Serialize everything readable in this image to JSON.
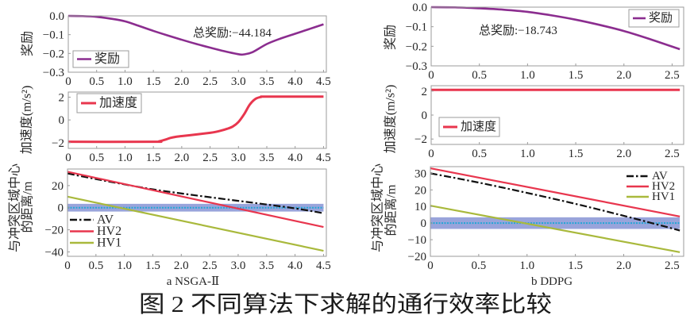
{
  "figure": {
    "caption": "图 2 不同算法下求解的通行效率比较",
    "subfigure_labels": [
      "a NSGA-Ⅱ",
      "b DDPG"
    ]
  },
  "colors": {
    "reward": "#8B2D8F",
    "acceleration": "#E8364E",
    "av": "#111111",
    "hv2": "#E8364E",
    "hv1": "#A9B93C",
    "conflict_band": "#8E9AD7",
    "conflict_center": "#22A7D6",
    "frame": "#9B9B9B"
  },
  "chart_data": [
    {
      "type": "line",
      "ylabel": [
        "奖励"
      ],
      "xlim": [
        0,
        4.55
      ],
      "ylim": [
        -0.3,
        0
      ],
      "xticks": [
        0,
        0.5,
        1,
        1.5,
        2,
        2.5,
        3,
        3.5,
        4,
        4.5
      ],
      "xtick_labels": [
        "0",
        "0.5",
        "1.0",
        "1.5",
        "2.0",
        "2.5",
        "3.0",
        "3.5",
        "4.0",
        "4.5"
      ],
      "yticks": [
        0,
        -0.1,
        -0.2,
        -0.3
      ],
      "ytick_labels": [
        "0.0",
        "−0.1",
        "−0.2",
        "−0.3"
      ],
      "grid": false,
      "legend": {
        "position": "lower-left",
        "framed": true
      },
      "annotation": "总奖励:−44.184",
      "series": [
        {
          "name": "奖励",
          "color": "#8B2D8F",
          "style": "solid",
          "x": [
            0,
            0.25,
            0.5,
            0.75,
            1.0,
            1.25,
            1.5,
            1.75,
            2.0,
            2.25,
            2.5,
            2.75,
            3.0,
            3.1,
            3.25,
            3.5,
            3.75,
            4.0,
            4.25,
            4.5
          ],
          "y": [
            0,
            -0.001,
            -0.005,
            -0.015,
            -0.029,
            -0.054,
            -0.08,
            -0.104,
            -0.127,
            -0.149,
            -0.169,
            -0.188,
            -0.204,
            -0.205,
            -0.193,
            -0.15,
            -0.12,
            -0.095,
            -0.07,
            -0.045
          ]
        }
      ]
    },
    {
      "type": "line",
      "ylabel": [
        "加速度(m/s²)"
      ],
      "xlim": [
        0,
        4.55
      ],
      "ylim": [
        -2.5,
        2.45
      ],
      "xticks": [
        0,
        0.5,
        1,
        1.5,
        2,
        2.5,
        3,
        3.5,
        4,
        4.5
      ],
      "xtick_labels": [
        "0",
        "0.5",
        "1.0",
        "1.5",
        "2.0",
        "2.5",
        "3.0",
        "3.5",
        "4.0",
        "4.5"
      ],
      "yticks": [
        2,
        0,
        -2
      ],
      "ytick_labels": [
        "2",
        "0",
        "−2"
      ],
      "grid": false,
      "legend": {
        "position": "upper-left",
        "framed": true
      },
      "series": [
        {
          "name": "加速度",
          "color": "#E8364E",
          "style": "solid",
          "x": [
            0,
            1.5,
            1.6,
            1.7,
            1.8,
            1.9,
            2.0,
            2.25,
            2.5,
            2.6,
            2.7,
            2.8,
            2.9,
            3.0,
            3.1,
            3.2,
            3.3,
            3.4,
            3.5,
            4.5
          ],
          "y": [
            -1.92,
            -1.92,
            -1.88,
            -1.75,
            -1.58,
            -1.48,
            -1.42,
            -1.28,
            -1.13,
            -1.05,
            -0.93,
            -0.78,
            -0.58,
            -0.18,
            0.5,
            1.35,
            1.85,
            2.02,
            2.05,
            2.05
          ]
        }
      ]
    },
    {
      "type": "line",
      "ylabel": [
        "与冲突区域中心",
        "的距离/m"
      ],
      "xlim": [
        0,
        4.55
      ],
      "ylim": [
        -44,
        35
      ],
      "xticks": [
        0,
        0.5,
        1,
        1.5,
        2,
        2.5,
        3,
        3.5,
        4,
        4.5
      ],
      "xtick_labels": [
        "0",
        "0.5",
        "1.0",
        "1.5",
        "2.0",
        "2.5",
        "3.0",
        "3.5",
        "4.0",
        "4.5"
      ],
      "yticks": [
        20,
        0,
        -20,
        -40
      ],
      "ytick_labels": [
        "20",
        "0",
        "−20",
        "−40"
      ],
      "grid": false,
      "legend": {
        "position": "lower-left",
        "framed": false
      },
      "bands": [
        {
          "x_range": [
            0,
            4.5
          ],
          "y_range": [
            -3.5,
            3.5
          ],
          "center": 0,
          "color": "#8E9AD7",
          "center_color": "#22A7D6"
        }
      ],
      "series": [
        {
          "name": "AV",
          "color": "#111111",
          "style": "dashdot",
          "x": [
            0,
            0.5,
            1.0,
            1.5,
            2.0,
            2.5,
            3.0,
            3.5,
            4.0,
            4.5
          ],
          "y": [
            31,
            25.9,
            21.1,
            16.6,
            12.9,
            9.5,
            6.2,
            2.9,
            -0.6,
            -5
          ]
        },
        {
          "name": "HV2",
          "color": "#E8364E",
          "style": "solid",
          "x": [
            0,
            4.5
          ],
          "y": [
            32.5,
            -17.5
          ]
        },
        {
          "name": "HV1",
          "color": "#A9B93C",
          "style": "solid",
          "x": [
            0,
            4.5
          ],
          "y": [
            10,
            -39
          ]
        }
      ]
    },
    {
      "type": "line",
      "ylabel": [
        "奖励"
      ],
      "xlim": [
        0,
        2.62
      ],
      "ylim": [
        -0.3,
        0
      ],
      "xticks": [
        0,
        0.5,
        1,
        1.5,
        2,
        2.5
      ],
      "xtick_labels": [
        "0",
        "0.5",
        "1.0",
        "1.5",
        "2.0",
        "2.5"
      ],
      "yticks": [
        0,
        -0.1,
        -0.2,
        -0.3
      ],
      "ytick_labels": [
        "0.0",
        "−0.1",
        "−0.2",
        "−0.3"
      ],
      "grid": false,
      "legend": {
        "position": "upper-right",
        "framed": true
      },
      "annotation": "总奖励:−18.743",
      "series": [
        {
          "name": "奖励",
          "color": "#8B2D8F",
          "style": "solid",
          "x": [
            0,
            0.25,
            0.5,
            0.75,
            1.0,
            1.25,
            1.5,
            1.75,
            2.0,
            2.25,
            2.58
          ],
          "y": [
            0,
            -0.001,
            -0.006,
            -0.013,
            -0.024,
            -0.042,
            -0.064,
            -0.091,
            -0.122,
            -0.16,
            -0.215
          ]
        }
      ]
    },
    {
      "type": "line",
      "ylabel": [
        "加速度(m/s²)"
      ],
      "xlim": [
        0,
        2.62
      ],
      "ylim": [
        -2.45,
        2.45
      ],
      "xticks": [
        0,
        0.5,
        1,
        1.5,
        2,
        2.5
      ],
      "xtick_labels": [
        "0",
        "0.5",
        "1.0",
        "1.5",
        "2.0",
        "2.5"
      ],
      "yticks": [
        2,
        0,
        -2
      ],
      "ytick_labels": [
        "2",
        "0",
        "−2"
      ],
      "grid": false,
      "legend": {
        "position": "lower-left",
        "framed": true
      },
      "series": [
        {
          "name": "加速度",
          "color": "#E8364E",
          "style": "solid",
          "x": [
            0,
            2.58
          ],
          "y": [
            2.1,
            2.1
          ]
        }
      ]
    },
    {
      "type": "line",
      "ylabel": [
        "与冲突区域中心",
        "的距离/m"
      ],
      "xlim": [
        0,
        2.62
      ],
      "ylim": [
        -20,
        34
      ],
      "xticks": [
        0,
        0.5,
        1,
        1.5,
        2,
        2.5
      ],
      "xtick_labels": [
        "0",
        "0.5",
        "1.0",
        "1.5",
        "2.0",
        "2.5"
      ],
      "yticks": [
        30,
        20,
        10,
        0,
        -10,
        -20
      ],
      "ytick_labels": [
        "30",
        "20",
        "10",
        "0",
        "−10",
        "−20"
      ],
      "grid": false,
      "legend": {
        "position": "upper-right",
        "framed": false
      },
      "bands": [
        {
          "x_range": [
            0,
            2.58
          ],
          "y_range": [
            -3.5,
            3.5
          ],
          "center": 0,
          "color": "#8E9AD7",
          "center_color": "#22A7D6"
        }
      ],
      "series": [
        {
          "name": "AV",
          "color": "#111111",
          "style": "dashdot",
          "x": [
            0,
            0.5,
            1.0,
            1.5,
            2.0,
            2.5,
            2.58
          ],
          "y": [
            30,
            24.4,
            18.2,
            11.6,
            4.4,
            -3.2,
            -4.5
          ]
        },
        {
          "name": "HV2",
          "color": "#E8364E",
          "style": "solid",
          "x": [
            0,
            2.58
          ],
          "y": [
            33,
            4
          ]
        },
        {
          "name": "HV1",
          "color": "#A9B93C",
          "style": "solid",
          "x": [
            0,
            2.58
          ],
          "y": [
            10.5,
            -17.5
          ]
        }
      ]
    }
  ]
}
